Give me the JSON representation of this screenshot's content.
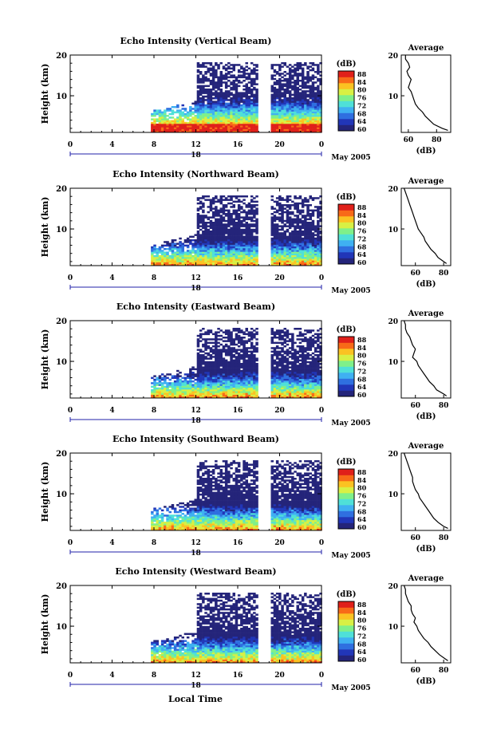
{
  "figure": {
    "xlabel": "Local Time",
    "date_label": "May 2005",
    "day_label": "18",
    "height_label": "Height (km)",
    "colorbar_label": "(dB)",
    "average_title": "Average",
    "average_xlabel": "(dB)"
  },
  "colors": {
    "colormap": [
      "#24247a",
      "#2136b8",
      "#2f6fe0",
      "#3fb0f2",
      "#4fe0d8",
      "#7ff08a",
      "#d8f044",
      "#fbc222",
      "#f86a18",
      "#e0201a"
    ],
    "axis": "#000000",
    "time_axis_marker": "#2222aa"
  },
  "chart_data": [
    {
      "type": "heatmap",
      "title": "Echo Intensity (Vertical Beam)",
      "x_ticks": [
        "0",
        "4",
        "8",
        "12",
        "16",
        "20",
        "0"
      ],
      "xlim": [
        0,
        24
      ],
      "y_ticks": [
        "20",
        "10"
      ],
      "ylim": [
        1,
        20
      ],
      "colorbar_ticks": [
        "88",
        "84",
        "80",
        "76",
        "72",
        "68",
        "64",
        "60"
      ],
      "clim": [
        60,
        88
      ],
      "data_gap_hours": [
        18.0,
        19.0
      ],
      "data_start_hour": 7.7,
      "upper_layer_start_hour": 12.0,
      "profile": {
        "title": "Average",
        "x_ticks": [
          "60",
          "80"
        ],
        "xlim": [
          55,
          90
        ],
        "y_ticks": [
          "20",
          "10"
        ],
        "ylim": [
          1,
          20
        ],
        "height_km": [
          1.5,
          2,
          3,
          4,
          5,
          6,
          7,
          8,
          9,
          10,
          11,
          12,
          13,
          14,
          15,
          16,
          17,
          18,
          19,
          20
        ],
        "values_db": [
          88,
          84,
          78,
          75,
          72,
          70,
          67,
          65,
          64,
          63,
          62,
          60,
          61,
          62,
          60,
          59,
          61,
          60,
          58,
          58
        ]
      }
    },
    {
      "type": "heatmap",
      "title": "Echo Intensity (Northward Beam)",
      "x_ticks": [
        "0",
        "4",
        "8",
        "12",
        "16",
        "20",
        "0"
      ],
      "xlim": [
        0,
        24
      ],
      "y_ticks": [
        "20",
        "10"
      ],
      "ylim": [
        1,
        20
      ],
      "colorbar_ticks": [
        "88",
        "84",
        "80",
        "76",
        "72",
        "68",
        "64",
        "60"
      ],
      "clim": [
        60,
        88
      ],
      "data_gap_hours": [
        18.0,
        19.0
      ],
      "data_start_hour": 7.7,
      "upper_layer_start_hour": 12.0,
      "profile": {
        "title": "Average",
        "x_ticks": [
          "60",
          "80"
        ],
        "xlim": [
          50,
          85
        ],
        "y_ticks": [
          "20",
          "10"
        ],
        "ylim": [
          1,
          20
        ],
        "height_km": [
          1.5,
          2,
          3,
          4,
          5,
          6,
          7,
          8,
          9,
          10,
          11,
          12,
          13,
          14,
          15,
          16,
          17,
          18,
          19,
          20
        ],
        "values_db": [
          82,
          80,
          76,
          74,
          71,
          69,
          67,
          66,
          64,
          62,
          61,
          60,
          59,
          58,
          57,
          56,
          55,
          54,
          53,
          52
        ]
      }
    },
    {
      "type": "heatmap",
      "title": "Echo Intensity (Eastward Beam)",
      "x_ticks": [
        "0",
        "4",
        "8",
        "12",
        "16",
        "20",
        "0"
      ],
      "xlim": [
        0,
        24
      ],
      "y_ticks": [
        "20",
        "10"
      ],
      "ylim": [
        1,
        20
      ],
      "colorbar_ticks": [
        "88",
        "84",
        "80",
        "76",
        "72",
        "68",
        "64",
        "60"
      ],
      "clim": [
        60,
        88
      ],
      "data_gap_hours": [
        18.0,
        19.0
      ],
      "data_start_hour": 7.7,
      "upper_layer_start_hour": 12.0,
      "profile": {
        "title": "Average",
        "x_ticks": [
          "60",
          "80"
        ],
        "xlim": [
          50,
          85
        ],
        "y_ticks": [
          "20",
          "10"
        ],
        "ylim": [
          1,
          20
        ],
        "height_km": [
          1.5,
          2,
          3,
          4,
          5,
          6,
          7,
          8,
          9,
          10,
          11,
          12,
          13,
          14,
          15,
          16,
          17,
          18,
          19,
          20
        ],
        "values_db": [
          82,
          80,
          75,
          73,
          70,
          68,
          66,
          64,
          62,
          61,
          58,
          59,
          60,
          58,
          57,
          56,
          54,
          53,
          53,
          52
        ]
      }
    },
    {
      "type": "heatmap",
      "title": "Echo Intensity (Southward Beam)",
      "x_ticks": [
        "0",
        "4",
        "8",
        "12",
        "16",
        "20",
        "0"
      ],
      "xlim": [
        0,
        24
      ],
      "y_ticks": [
        "20",
        "10"
      ],
      "ylim": [
        1,
        20
      ],
      "colorbar_ticks": [
        "88",
        "84",
        "80",
        "76",
        "72",
        "68",
        "64",
        "60"
      ],
      "clim": [
        60,
        88
      ],
      "data_gap_hours": [
        18.0,
        19.0
      ],
      "data_start_hour": 7.7,
      "upper_layer_start_hour": 12.0,
      "profile": {
        "title": "Average",
        "x_ticks": [
          "60",
          "80"
        ],
        "xlim": [
          50,
          85
        ],
        "y_ticks": [
          "20",
          "10"
        ],
        "ylim": [
          1,
          20
        ],
        "height_km": [
          1.5,
          2,
          3,
          4,
          5,
          6,
          7,
          8,
          9,
          10,
          11,
          12,
          13,
          14,
          15,
          16,
          17,
          18,
          19,
          20
        ],
        "values_db": [
          83,
          80,
          76,
          73,
          71,
          69,
          67,
          65,
          63,
          62,
          60,
          59,
          58,
          58,
          57,
          56,
          55,
          54,
          53,
          52
        ]
      }
    },
    {
      "type": "heatmap",
      "title": "Echo Intensity (Westward Beam)",
      "x_ticks": [
        "0",
        "4",
        "8",
        "12",
        "16",
        "20",
        "0"
      ],
      "xlim": [
        0,
        24
      ],
      "y_ticks": [
        "20",
        "10"
      ],
      "ylim": [
        1,
        20
      ],
      "colorbar_ticks": [
        "88",
        "84",
        "80",
        "76",
        "72",
        "68",
        "64",
        "60"
      ],
      "clim": [
        60,
        88
      ],
      "data_gap_hours": [
        18.0,
        19.0
      ],
      "data_start_hour": 7.7,
      "upper_layer_start_hour": 12.0,
      "profile": {
        "title": "Average",
        "x_ticks": [
          "60",
          "80"
        ],
        "xlim": [
          50,
          85
        ],
        "y_ticks": [
          "20",
          "10"
        ],
        "ylim": [
          1,
          20
        ],
        "height_km": [
          1.5,
          2,
          3,
          4,
          5,
          6,
          7,
          8,
          9,
          10,
          11,
          12,
          13,
          14,
          15,
          16,
          17,
          18,
          19,
          20
        ],
        "values_db": [
          83,
          81,
          77,
          74,
          71,
          69,
          66,
          64,
          62,
          61,
          59,
          60,
          58,
          57,
          57,
          55,
          54,
          53,
          53,
          52
        ]
      }
    }
  ]
}
